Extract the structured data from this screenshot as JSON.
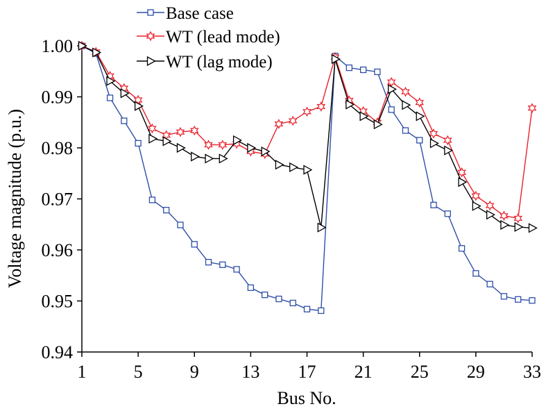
{
  "chart_data": {
    "type": "line",
    "title": "",
    "xlabel": "Bus No.",
    "ylabel": "Voltage magnitude (p.u.)",
    "x": [
      1,
      2,
      3,
      4,
      5,
      6,
      7,
      8,
      9,
      10,
      11,
      12,
      13,
      14,
      15,
      16,
      17,
      18,
      19,
      20,
      21,
      22,
      23,
      24,
      25,
      26,
      27,
      28,
      29,
      30,
      31,
      32,
      33
    ],
    "xlim": [
      1,
      33
    ],
    "xticks": [
      1,
      5,
      9,
      13,
      17,
      21,
      25,
      29,
      33
    ],
    "xtick_labels": [
      "1",
      "5",
      "9",
      "13",
      "17",
      "21",
      "25",
      "29",
      "33"
    ],
    "ylim": [
      0.94,
      1.0
    ],
    "yticks": [
      0.94,
      0.95,
      0.96,
      0.97,
      0.98,
      0.99,
      1.0
    ],
    "ytick_labels": [
      "0.94",
      "0.95",
      "0.96",
      "0.97",
      "0.98",
      "0.99",
      "1.00"
    ],
    "grid": false,
    "legend_position": "top-left",
    "series": [
      {
        "name": "Base case",
        "color": "#2e4fa8",
        "marker": "square",
        "values": [
          1.0,
          0.9985,
          0.9898,
          0.9853,
          0.9809,
          0.9698,
          0.9678,
          0.9649,
          0.9611,
          0.9576,
          0.9571,
          0.9562,
          0.9526,
          0.9512,
          0.9504,
          0.9496,
          0.9484,
          0.9481,
          0.998,
          0.9957,
          0.9953,
          0.9949,
          0.9875,
          0.9834,
          0.9815,
          0.9688,
          0.9671,
          0.9603,
          0.9554,
          0.9533,
          0.9509,
          0.9503,
          0.9501
        ]
      },
      {
        "name": "WT (lead mode)",
        "color": "#e8202a",
        "marker": "star",
        "values": [
          1.0,
          0.9988,
          0.9941,
          0.9917,
          0.9894,
          0.9838,
          0.9825,
          0.9831,
          0.9834,
          0.9806,
          0.9806,
          0.9808,
          0.9793,
          0.9788,
          0.9847,
          0.9853,
          0.9871,
          0.9881,
          0.9978,
          0.9893,
          0.9872,
          0.985,
          0.9929,
          0.991,
          0.9889,
          0.9828,
          0.9815,
          0.9752,
          0.9706,
          0.9687,
          0.9667,
          0.9662,
          0.9878
        ]
      },
      {
        "name": "WT (lag mode)",
        "color": "#000000",
        "marker": "triangle-right",
        "values": [
          1.0,
          0.9987,
          0.9931,
          0.9907,
          0.9882,
          0.9818,
          0.9813,
          0.98,
          0.9783,
          0.9779,
          0.9779,
          0.9815,
          0.98,
          0.9793,
          0.9767,
          0.9762,
          0.9757,
          0.9644,
          0.9974,
          0.9885,
          0.9862,
          0.9846,
          0.9915,
          0.9884,
          0.9862,
          0.9809,
          0.9795,
          0.9733,
          0.9686,
          0.9669,
          0.9649,
          0.9645,
          0.9643
        ]
      }
    ]
  }
}
